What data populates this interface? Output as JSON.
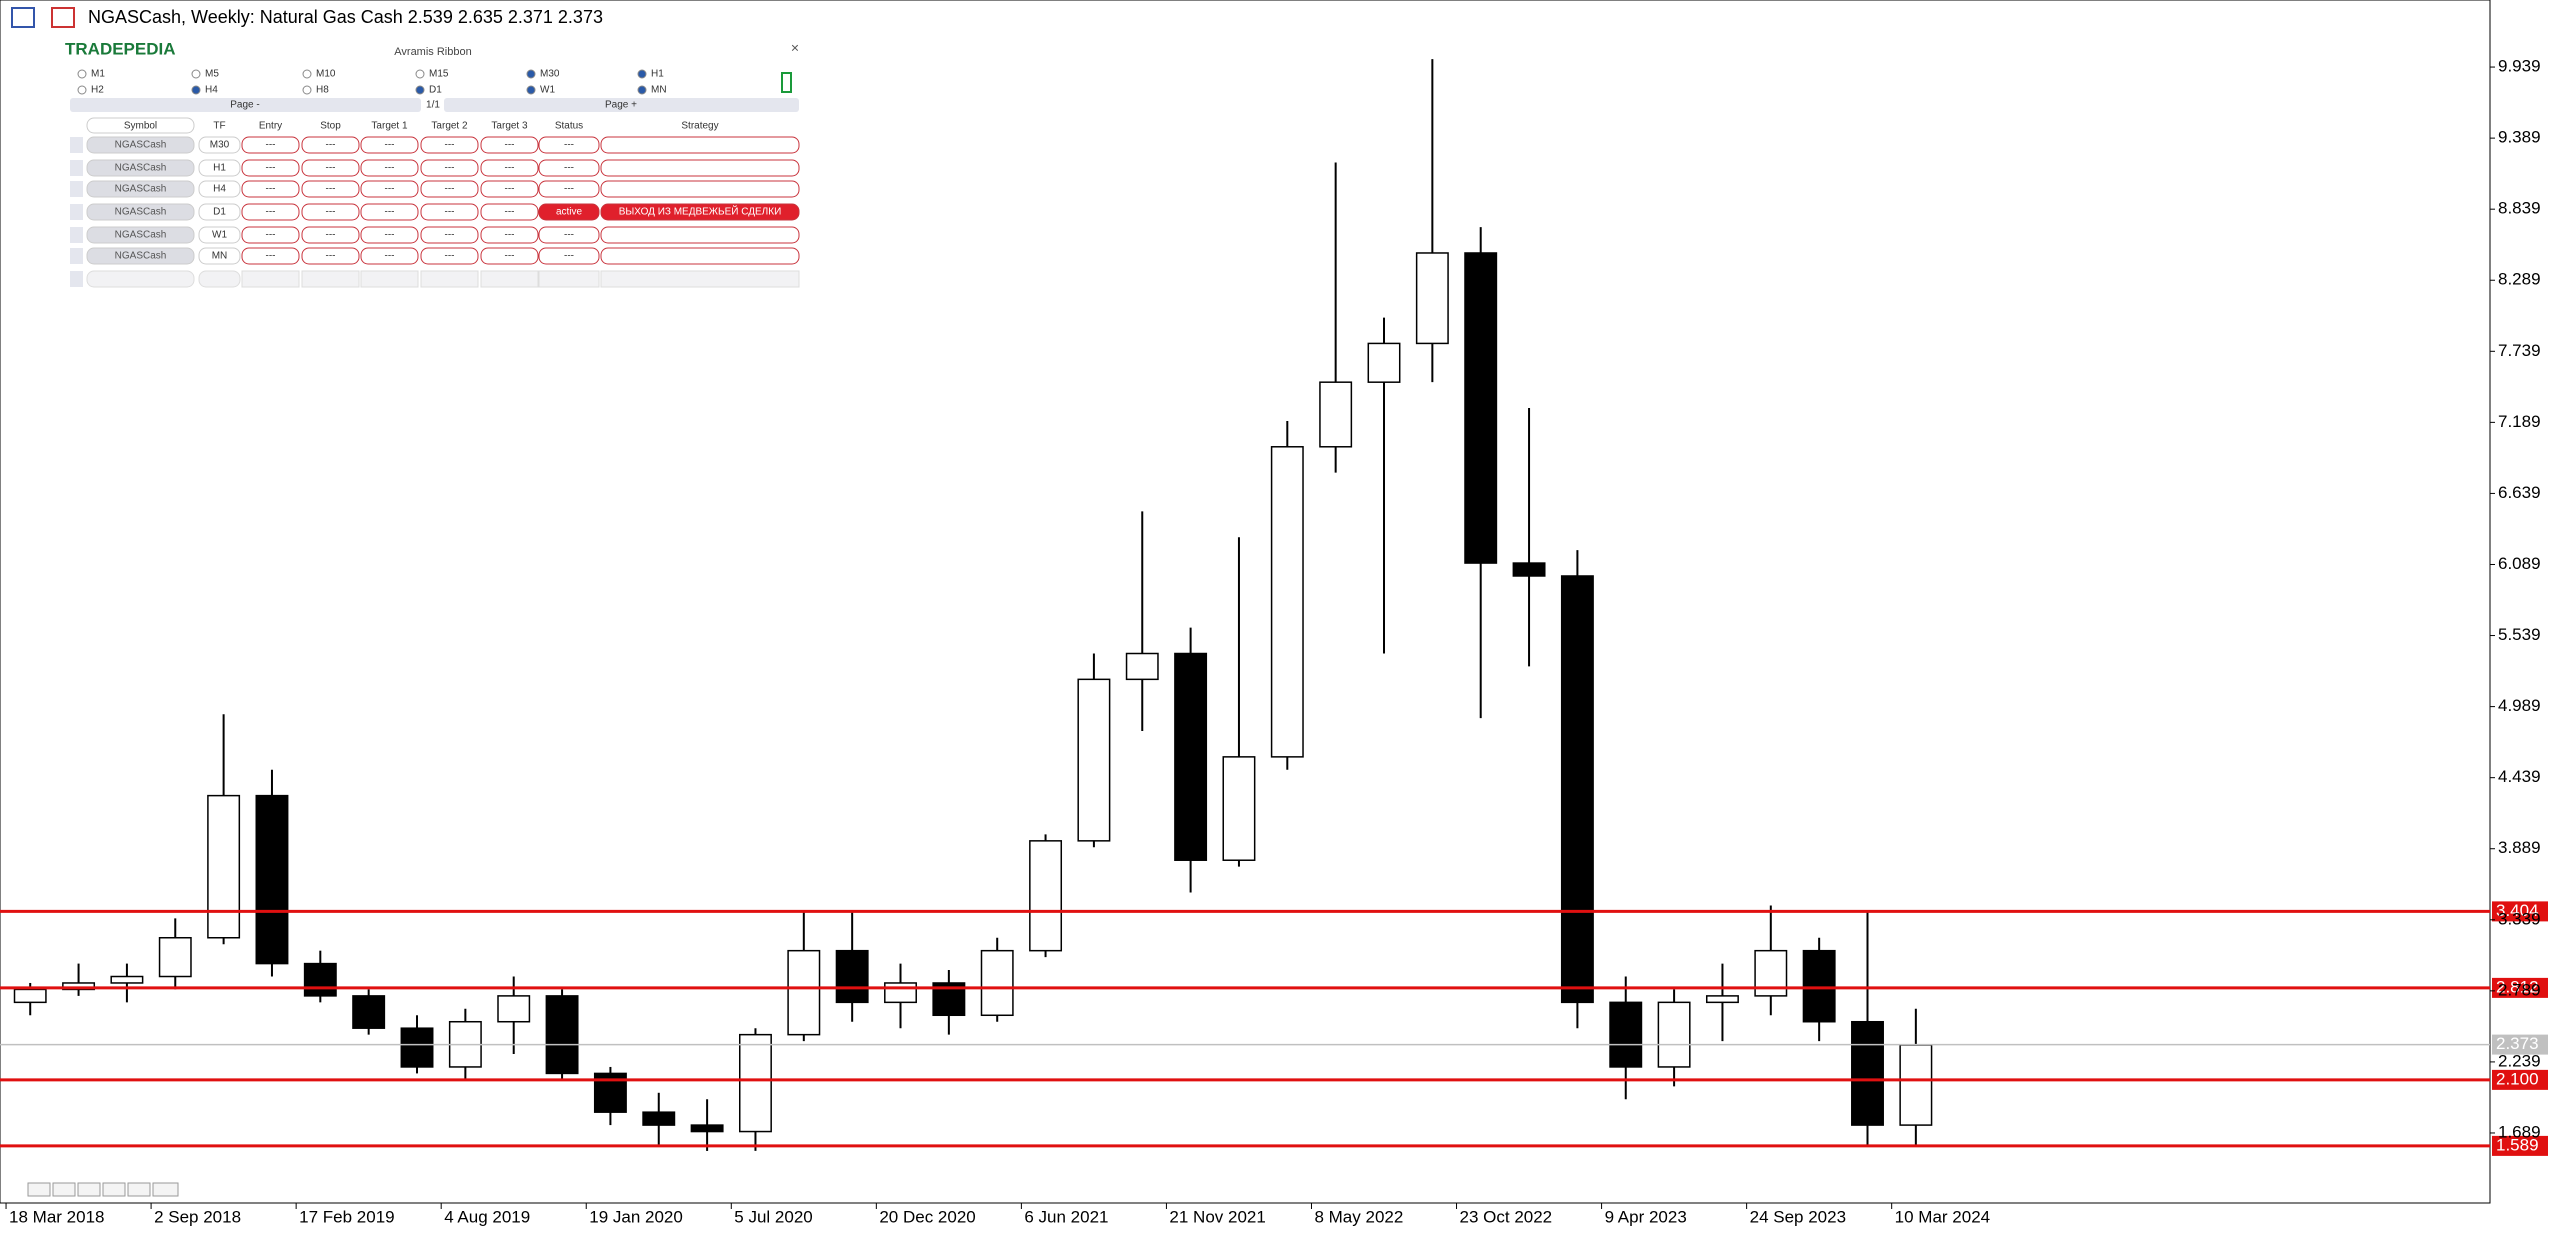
{
  "chart_data": {
    "type": "candlestick",
    "title": "NGASCash, Weekly:  Natural Gas Cash  2.539 2.635 2.371 2.373",
    "x": [
      "18 Mar 2018",
      "13 May 2018",
      "8 Jul 2018",
      "2 Sep 2018",
      "28 Oct 2018",
      "23 Dec 2018",
      "17 Feb 2019",
      "14 Apr 2019",
      "9 Jun 2019",
      "4 Aug 2019",
      "29 Sep 2019",
      "24 Nov 2019",
      "19 Jan 2020",
      "15 Mar 2020",
      "10 May 2020",
      "5 Jul 2020",
      "30 Aug 2020",
      "25 Oct 2020",
      "20 Dec 2020",
      "14 Feb 2021",
      "11 Apr 2021",
      "6 Jun 2021",
      "1 Aug 2021",
      "26 Sep 2021",
      "21 Nov 2021",
      "16 Jan 2022",
      "13 Mar 2022",
      "8 May 2022",
      "3 Jul 2022",
      "28 Aug 2022",
      "23 Oct 2022",
      "18 Dec 2022",
      "12 Feb 2023",
      "9 Apr 2023",
      "4 Jun 2023",
      "30 Jul 2023",
      "24 Sep 2023",
      "19 Nov 2023",
      "14 Jan 2024",
      "10 Mar 2024"
    ],
    "open": [
      2.7,
      2.8,
      2.85,
      2.9,
      3.2,
      4.3,
      3.0,
      2.75,
      2.5,
      2.2,
      2.55,
      2.75,
      2.15,
      1.85,
      1.75,
      1.7,
      2.45,
      3.1,
      2.7,
      2.85,
      2.6,
      3.1,
      3.95,
      5.2,
      5.4,
      3.8,
      4.6,
      7.0,
      7.5,
      7.8,
      8.5,
      6.1,
      6.0,
      2.7,
      2.2,
      2.7,
      2.75,
      3.1,
      2.55,
      1.75
    ],
    "high": [
      2.85,
      3.0,
      3.0,
      3.35,
      4.93,
      4.5,
      3.1,
      2.8,
      2.6,
      2.65,
      2.9,
      2.8,
      2.2,
      2.0,
      1.95,
      2.5,
      3.4,
      3.4,
      3.0,
      2.95,
      3.2,
      4.0,
      5.4,
      6.5,
      5.6,
      6.3,
      7.2,
      9.2,
      8.0,
      10.0,
      8.7,
      7.3,
      6.2,
      2.9,
      2.8,
      3.0,
      3.45,
      3.2,
      3.4,
      2.65
    ],
    "low": [
      2.6,
      2.75,
      2.7,
      2.8,
      3.15,
      2.9,
      2.7,
      2.45,
      2.15,
      2.1,
      2.3,
      2.1,
      1.75,
      1.6,
      1.55,
      1.55,
      2.4,
      2.55,
      2.5,
      2.45,
      2.55,
      3.05,
      3.9,
      4.8,
      3.55,
      3.75,
      4.5,
      6.8,
      5.4,
      7.5,
      4.9,
      5.3,
      2.5,
      1.95,
      2.05,
      2.4,
      2.6,
      2.4,
      1.6,
      1.6
    ],
    "close": [
      2.8,
      2.85,
      2.9,
      3.2,
      4.3,
      3.0,
      2.75,
      2.5,
      2.2,
      2.55,
      2.75,
      2.15,
      1.85,
      1.75,
      1.7,
      2.45,
      3.1,
      2.7,
      2.85,
      2.6,
      3.1,
      3.95,
      5.2,
      5.4,
      3.8,
      4.6,
      7.0,
      7.5,
      7.8,
      8.5,
      6.1,
      6.0,
      2.7,
      2.2,
      2.7,
      2.75,
      3.1,
      2.55,
      1.75,
      2.37
    ],
    "xlim": [
      "11 Mar 2018",
      "1 Feb 2026"
    ],
    "xticks": [
      "18 Mar 2018",
      "2 Sep 2018",
      "17 Feb 2019",
      "4 Aug 2019",
      "19 Jan 2020",
      "5 Jul 2020",
      "20 Dec 2020",
      "6 Jun 2021",
      "21 Nov 2021",
      "8 May 2022",
      "23 Oct 2022",
      "9 Apr 2023",
      "24 Sep 2023",
      "10 Mar 2024"
    ],
    "ylim": [
      1.147,
      10.458
    ],
    "yticks": [
      9.939,
      9.389,
      8.839,
      8.289,
      7.739,
      7.189,
      6.639,
      6.089,
      5.539,
      4.989,
      4.439,
      3.889,
      3.339,
      2.789,
      2.239,
      1.689
    ],
    "levels": [
      {
        "value": 3.404,
        "color": "#e01010"
      },
      {
        "value": 2.812,
        "color": "#e01010"
      },
      {
        "value": 2.1,
        "label": "2.100",
        "color": "#e01010"
      },
      {
        "value": 1.589,
        "color": "#e01010"
      }
    ],
    "current_price": {
      "value": 2.373,
      "color": "#c0c0c0"
    }
  },
  "panel": {
    "logo": "TRADEPEDIA",
    "title": "Avramis Ribbon",
    "close": "×",
    "timeframes": [
      {
        "label": "M1",
        "checked": false
      },
      {
        "label": "M5",
        "checked": false
      },
      {
        "label": "M10",
        "checked": false
      },
      {
        "label": "M15",
        "checked": false
      },
      {
        "label": "M30",
        "checked": true
      },
      {
        "label": "H1",
        "checked": true
      },
      {
        "label": "H2",
        "checked": false
      },
      {
        "label": "H4",
        "checked": true
      },
      {
        "label": "H8",
        "checked": false
      },
      {
        "label": "D1",
        "checked": true
      },
      {
        "label": "W1",
        "checked": true
      },
      {
        "label": "MN",
        "checked": true
      }
    ],
    "page_prev": "Page -",
    "page_num": "1/1",
    "page_next": "Page +",
    "headers": [
      "Symbol",
      "TF",
      "Entry",
      "Stop",
      "Target 1",
      "Target 2",
      "Target 3",
      "Status",
      "Strategy"
    ],
    "rows": [
      [
        "NGASCash",
        "M30",
        "---",
        "---",
        "---",
        "---",
        "---",
        "---",
        ""
      ],
      [
        "NGASCash",
        "H1",
        "---",
        "---",
        "---",
        "---",
        "---",
        "---",
        ""
      ],
      [
        "NGASCash",
        "H4",
        "---",
        "---",
        "---",
        "---",
        "---",
        "---",
        ""
      ],
      [
        "NGASCash",
        "D1",
        "---",
        "---",
        "---",
        "---",
        "---",
        "active",
        "ВЫХОД ИЗ МЕДВЕЖЬЕЙ СДЕЛКИ"
      ],
      [
        "NGASCash",
        "W1",
        "---",
        "---",
        "---",
        "---",
        "---",
        "---",
        ""
      ],
      [
        "NGASCash",
        "MN",
        "---",
        "---",
        "---",
        "---",
        "---",
        "---",
        ""
      ]
    ]
  }
}
